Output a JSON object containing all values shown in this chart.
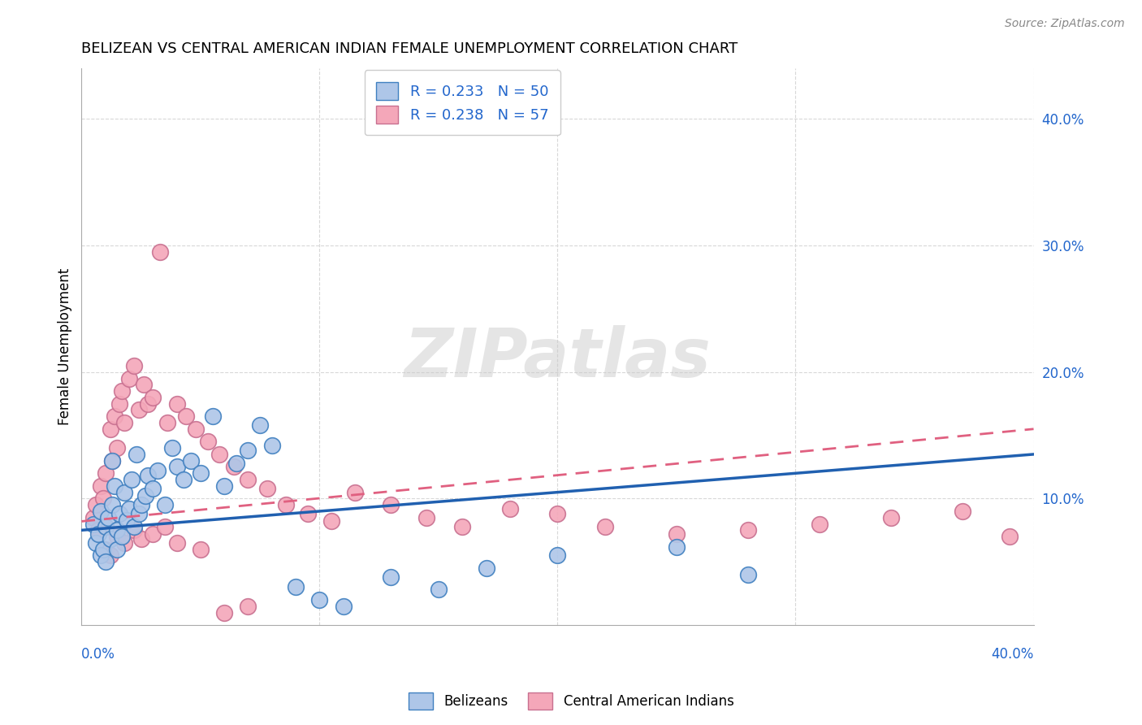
{
  "title": "BELIZEAN VS CENTRAL AMERICAN INDIAN FEMALE UNEMPLOYMENT CORRELATION CHART",
  "source": "Source: ZipAtlas.com",
  "ylabel": "Female Unemployment",
  "right_yticks": [
    "40.0%",
    "30.0%",
    "20.0%",
    "10.0%"
  ],
  "right_ytick_vals": [
    0.4,
    0.3,
    0.2,
    0.1
  ],
  "xlim": [
    0.0,
    0.4
  ],
  "ylim": [
    0.0,
    0.44
  ],
  "belizean_R": 0.233,
  "belizean_N": 50,
  "ca_indian_R": 0.238,
  "ca_indian_N": 57,
  "belizean_color": "#aec6e8",
  "ca_indian_color": "#f4a7b9",
  "belizean_line_color": "#2060b0",
  "ca_indian_line_color": "#e06080",
  "watermark": "ZIPatlas",
  "background_color": "#ffffff",
  "grid_color": "#d8d8d8",
  "belizean_line_start_y": 0.075,
  "belizean_line_end_y": 0.135,
  "ca_indian_line_start_y": 0.082,
  "ca_indian_line_end_y": 0.155,
  "belizean_x": [
    0.005,
    0.006,
    0.007,
    0.008,
    0.008,
    0.009,
    0.01,
    0.01,
    0.011,
    0.012,
    0.013,
    0.013,
    0.014,
    0.015,
    0.015,
    0.016,
    0.017,
    0.018,
    0.019,
    0.02,
    0.021,
    0.022,
    0.023,
    0.024,
    0.025,
    0.027,
    0.028,
    0.03,
    0.032,
    0.035,
    0.038,
    0.04,
    0.043,
    0.046,
    0.05,
    0.055,
    0.06,
    0.065,
    0.07,
    0.075,
    0.08,
    0.09,
    0.1,
    0.11,
    0.13,
    0.15,
    0.17,
    0.2,
    0.25,
    0.28
  ],
  "belizean_y": [
    0.08,
    0.065,
    0.072,
    0.055,
    0.09,
    0.06,
    0.078,
    0.05,
    0.085,
    0.068,
    0.13,
    0.095,
    0.11,
    0.075,
    0.06,
    0.088,
    0.07,
    0.105,
    0.083,
    0.092,
    0.115,
    0.078,
    0.135,
    0.088,
    0.095,
    0.102,
    0.118,
    0.108,
    0.122,
    0.095,
    0.14,
    0.125,
    0.115,
    0.13,
    0.12,
    0.165,
    0.11,
    0.128,
    0.138,
    0.158,
    0.142,
    0.03,
    0.02,
    0.015,
    0.038,
    0.028,
    0.045,
    0.055,
    0.062,
    0.04
  ],
  "ca_indian_x": [
    0.005,
    0.006,
    0.007,
    0.008,
    0.009,
    0.01,
    0.012,
    0.013,
    0.014,
    0.015,
    0.016,
    0.017,
    0.018,
    0.02,
    0.022,
    0.024,
    0.026,
    0.028,
    0.03,
    0.033,
    0.036,
    0.04,
    0.044,
    0.048,
    0.053,
    0.058,
    0.064,
    0.07,
    0.078,
    0.086,
    0.095,
    0.105,
    0.115,
    0.13,
    0.145,
    0.16,
    0.18,
    0.2,
    0.22,
    0.25,
    0.28,
    0.31,
    0.34,
    0.37,
    0.39,
    0.01,
    0.012,
    0.015,
    0.018,
    0.022,
    0.025,
    0.03,
    0.035,
    0.04,
    0.05,
    0.06,
    0.07
  ],
  "ca_indian_y": [
    0.085,
    0.095,
    0.075,
    0.11,
    0.1,
    0.12,
    0.155,
    0.13,
    0.165,
    0.14,
    0.175,
    0.185,
    0.16,
    0.195,
    0.205,
    0.17,
    0.19,
    0.175,
    0.18,
    0.295,
    0.16,
    0.175,
    0.165,
    0.155,
    0.145,
    0.135,
    0.125,
    0.115,
    0.108,
    0.095,
    0.088,
    0.082,
    0.105,
    0.095,
    0.085,
    0.078,
    0.092,
    0.088,
    0.078,
    0.072,
    0.075,
    0.08,
    0.085,
    0.09,
    0.07,
    0.06,
    0.055,
    0.07,
    0.065,
    0.075,
    0.068,
    0.072,
    0.078,
    0.065,
    0.06,
    0.01,
    0.015
  ]
}
